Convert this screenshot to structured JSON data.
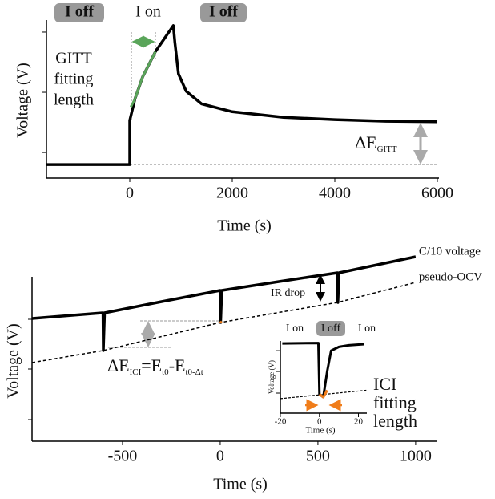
{
  "chart_data": [
    {
      "type": "line",
      "xlabel": "Time (s)",
      "ylabel": "Voltage (V)",
      "xlim": [
        -1625,
        6000
      ],
      "ylim": [
        0,
        1
      ],
      "xticks": [
        0,
        2000,
        4000,
        6000
      ],
      "yticks": [
        0.162,
        0.543,
        0.924
      ],
      "annotations": [
        "I off",
        "I on",
        "I off",
        "GITT",
        "fitting",
        "length",
        "ΔE",
        "GITT"
      ],
      "series": [
        {
          "color": "#999999",
          "width": 1,
          "dash": "3,2",
          "x": [
            0,
            6000
          ],
          "values": [
            0.086,
            0.086
          ]
        },
        {
          "color": "#000000",
          "width": 3.5,
          "x": [
            -1625,
            0,
            0,
            100,
            250,
            500,
            850,
            880,
            950,
            1100,
            1400,
            2000,
            3000,
            4000,
            5000,
            6000
          ],
          "values": [
            0.086,
            0.086,
            0.365,
            0.5,
            0.64,
            0.8,
            0.965,
            0.86,
            0.66,
            0.55,
            0.47,
            0.42,
            0.385,
            0.37,
            0.36,
            0.357
          ]
        },
        {
          "color": "#5aa55a",
          "width": 3,
          "x": [
            20,
            100,
            250,
            500
          ],
          "values": [
            0.45,
            0.5,
            0.64,
            0.8
          ]
        }
      ]
    },
    {
      "type": "line",
      "xlabel": "Time (s)",
      "ylabel": "Voltage (V)",
      "xlim": [
        -963,
        1107
      ],
      "ylim": [
        0,
        1
      ],
      "xticks": [
        -500,
        0,
        500,
        1000
      ],
      "yticks": [
        0.108,
        0.36,
        0.608
      ],
      "annotations": [
        "IR drop",
        "ΔE",
        "ICI",
        "=E",
        "t0",
        "-E",
        "t0-Δt",
        "ICI",
        "fitting",
        "length"
      ],
      "series": [
        {
          "name": "C/10 voltage",
          "color": "#000000",
          "width": 3.5,
          "x": [
            -963,
            -600,
            -598,
            -592,
            -300,
            0,
            2,
            8,
            300,
            600,
            602,
            608,
            1000
          ],
          "values": [
            0.612,
            0.64,
            0.452,
            0.64,
            0.696,
            0.752,
            0.592,
            0.752,
            0.796,
            0.84,
            0.692,
            0.84,
            0.92
          ]
        },
        {
          "name": "pseudo-OCV",
          "color": "#000000",
          "width": 1.5,
          "dash": "4,3",
          "x": [
            -963,
            -600,
            0,
            600,
            1000
          ],
          "values": [
            0.392,
            0.452,
            0.592,
            0.692,
            0.792
          ]
        },
        {
          "color": "#f07d1a",
          "width": 3,
          "x": [
            0,
            6
          ],
          "values": [
            0.598,
            0.59
          ]
        }
      ]
    },
    {
      "type": "line",
      "xlabel": "Time (s)",
      "ylabel": "Voltage (V)",
      "xlim": [
        -20,
        24.3
      ],
      "ylim": [
        0,
        1
      ],
      "xticks": [
        -20,
        0,
        20
      ],
      "yticks": [
        0.263,
        0.547,
        0.82
      ],
      "annotations": [
        "I on",
        "I off",
        "I on"
      ],
      "series": [
        {
          "color": "#000000",
          "width": 3,
          "x": [
            -19,
            -0.5,
            0,
            2,
            4,
            6,
            10,
            15,
            23
          ],
          "values": [
            0.915,
            0.92,
            0.25,
            0.21,
            0.55,
            0.82,
            0.87,
            0.89,
            0.905
          ]
        },
        {
          "color": "#000000",
          "width": 1.2,
          "dash": "3,2",
          "x": [
            -20,
            24
          ],
          "values": [
            0.19,
            0.3
          ]
        },
        {
          "color": "#f07d1a",
          "width": 3,
          "x": [
            0,
            2,
            4
          ],
          "values": [
            0.25,
            0.21,
            0.3
          ]
        }
      ]
    }
  ]
}
